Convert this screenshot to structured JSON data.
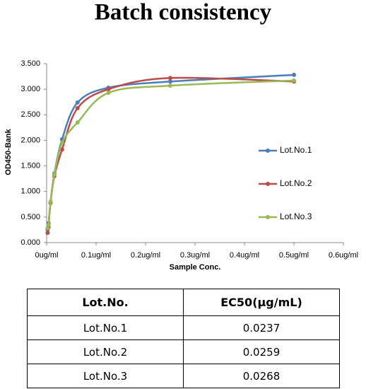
{
  "chart_data": {
    "type": "line",
    "title": "Batch consistency",
    "x_label": "Sample Conc.",
    "y_label": "OD450-Bank",
    "x": [
      0.5,
      0.25,
      0.125,
      0.0625,
      0.03125,
      0.015625,
      0.0078125,
      0.00390625,
      0.001953125
    ],
    "series": [
      {
        "name": "Lot.No.1",
        "color": "#4a7ebb",
        "values": [
          3.28,
          3.15,
          3.03,
          2.74,
          2.02,
          1.35,
          0.78,
          0.38,
          0.25
        ]
      },
      {
        "name": "Lot.No.2",
        "color": "#be4b48",
        "values": [
          3.15,
          3.22,
          3.0,
          2.63,
          1.82,
          1.3,
          0.78,
          0.3,
          0.19
        ]
      },
      {
        "name": "Lot.No.3",
        "color": "#98b954",
        "values": [
          3.17,
          3.07,
          2.93,
          2.35,
          1.95,
          1.33,
          0.8,
          0.35,
          0.28
        ]
      }
    ],
    "xlim": [
      0,
      0.6
    ],
    "xticks": [
      {
        "value": 0,
        "label": "0ug/ml"
      },
      {
        "value": 0.1,
        "label": "0.1ug/ml"
      },
      {
        "value": 0.2,
        "label": "0.2ug/ml"
      },
      {
        "value": 0.3,
        "label": "0.3ug/ml"
      },
      {
        "value": 0.4,
        "label": "0.4ug/ml"
      },
      {
        "value": 0.5,
        "label": "0.5ug/ml"
      },
      {
        "value": 0.6,
        "label": "0.6ug/ml"
      }
    ],
    "ylim": [
      0,
      3.5
    ],
    "yticks": [
      {
        "value": 0,
        "label": "0.000"
      },
      {
        "value": 0.5,
        "label": "0.500"
      },
      {
        "value": 1,
        "label": "1.000"
      },
      {
        "value": 1.5,
        "label": "1.500"
      },
      {
        "value": 2,
        "label": "2.000"
      },
      {
        "value": 2.5,
        "label": "2.500"
      },
      {
        "value": 3,
        "label": "3.000"
      },
      {
        "value": 3.5,
        "label": "3.500"
      }
    ],
    "grid": false,
    "legend": "right"
  },
  "table": {
    "header": [
      "Lot.No.",
      "EC50(μg/mL)"
    ],
    "rows": [
      [
        "Lot.No.1",
        "0.0237"
      ],
      [
        "Lot.No.2",
        "0.0259"
      ],
      [
        "Lot.No.3",
        "0.0268"
      ]
    ]
  }
}
